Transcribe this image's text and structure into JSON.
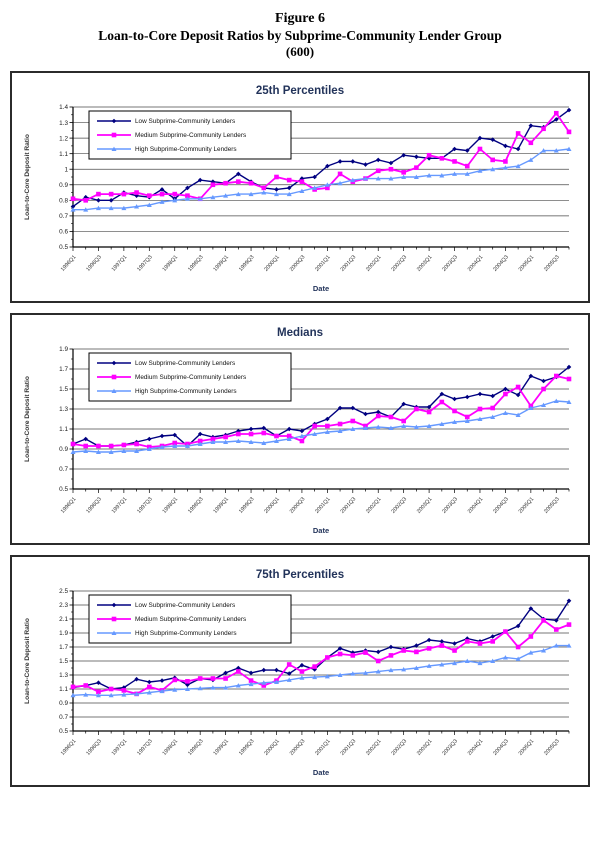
{
  "page": {
    "figure_label": "Figure 6",
    "title": "Loan-to-Core Deposit Ratios by Subprime-Community Lender Group",
    "subtitle": "(600)"
  },
  "colors": {
    "low": "#000080",
    "medium": "#FF00FF",
    "high": "#6699FF",
    "title_text": "#22335a",
    "grid": "#4a4a4a",
    "axis": "#000000"
  },
  "chart_data": [
    {
      "type": "line",
      "title": "25th Percentiles",
      "xlabel": "Date",
      "ylabel": "Loan-to-Core Deposit Ratio",
      "ylim": [
        0.5,
        1.4
      ],
      "ytick_step": 0.1,
      "grid": true,
      "legend_position": "top-left",
      "x_label_every": 2,
      "categories": [
        "1996Q1",
        "1996Q2",
        "1996Q3",
        "1996Q4",
        "1997Q1",
        "1997Q2",
        "1997Q3",
        "1997Q4",
        "1998Q1",
        "1998Q2",
        "1998Q3",
        "1998Q4",
        "1999Q1",
        "1999Q2",
        "1999Q3",
        "1999Q4",
        "2000Q1",
        "2000Q2",
        "2000Q3",
        "2000Q4",
        "2001Q1",
        "2001Q2",
        "2001Q3",
        "2001Q4",
        "2002Q1",
        "2002Q2",
        "2002Q3",
        "2002Q4",
        "2003Q1",
        "2003Q2",
        "2003Q3",
        "2003Q4",
        "2004Q1",
        "2004Q2",
        "2004Q3",
        "2004Q4",
        "2005Q1",
        "2005Q2",
        "2005Q3",
        "2005Q4"
      ],
      "series": [
        {
          "name": "Low Subprime-Community  Lenders",
          "color": "low",
          "marker": "diamond",
          "values": [
            0.76,
            0.82,
            0.8,
            0.8,
            0.85,
            0.83,
            0.82,
            0.87,
            0.81,
            0.88,
            0.93,
            0.92,
            0.91,
            0.97,
            0.92,
            0.88,
            0.87,
            0.88,
            0.94,
            0.95,
            1.02,
            1.05,
            1.05,
            1.03,
            1.06,
            1.04,
            1.09,
            1.08,
            1.07,
            1.07,
            1.13,
            1.12,
            1.2,
            1.19,
            1.15,
            1.13,
            1.28,
            1.27,
            1.32,
            1.38
          ]
        },
        {
          "name": "Medium Subprime-Community Lenders",
          "color": "medium",
          "marker": "square",
          "values": [
            0.81,
            0.8,
            0.84,
            0.84,
            0.84,
            0.85,
            0.83,
            0.84,
            0.84,
            0.83,
            0.81,
            0.9,
            0.91,
            0.92,
            0.91,
            0.88,
            0.95,
            0.93,
            0.92,
            0.87,
            0.88,
            0.97,
            0.92,
            0.94,
            0.99,
            1.0,
            0.98,
            1.01,
            1.09,
            1.07,
            1.05,
            1.02,
            1.13,
            1.06,
            1.05,
            1.23,
            1.17,
            1.26,
            1.36,
            1.24
          ]
        },
        {
          "name": "High Subprime-Community Lenders",
          "color": "high",
          "marker": "triangle",
          "values": [
            0.74,
            0.74,
            0.75,
            0.75,
            0.75,
            0.76,
            0.77,
            0.79,
            0.8,
            0.81,
            0.81,
            0.82,
            0.83,
            0.84,
            0.84,
            0.85,
            0.84,
            0.84,
            0.86,
            0.88,
            0.9,
            0.91,
            0.93,
            0.94,
            0.94,
            0.94,
            0.95,
            0.95,
            0.96,
            0.96,
            0.97,
            0.97,
            0.99,
            1.0,
            1.01,
            1.02,
            1.06,
            1.12,
            1.12,
            1.13
          ]
        }
      ]
    },
    {
      "type": "line",
      "title": "Medians",
      "xlabel": "Date",
      "ylabel": "Loan-to-Core Deposit Ratio",
      "ylim": [
        0.5,
        1.9
      ],
      "ytick_step": 0.2,
      "grid": true,
      "legend_position": "top-left",
      "x_label_every": 2,
      "categories": [
        "1996Q1",
        "1996Q2",
        "1996Q3",
        "1996Q4",
        "1997Q1",
        "1997Q2",
        "1997Q3",
        "1997Q4",
        "1998Q1",
        "1998Q2",
        "1998Q3",
        "1998Q4",
        "1999Q1",
        "1999Q2",
        "1999Q3",
        "1999Q4",
        "2000Q1",
        "2000Q2",
        "2000Q3",
        "2000Q4",
        "2001Q1",
        "2001Q2",
        "2001Q3",
        "2001Q4",
        "2002Q1",
        "2002Q2",
        "2002Q3",
        "2002Q4",
        "2003Q1",
        "2003Q2",
        "2003Q3",
        "2003Q4",
        "2004Q1",
        "2004Q2",
        "2004Q3",
        "2004Q4",
        "2005Q1",
        "2005Q2",
        "2005Q3",
        "2005Q4"
      ],
      "series": [
        {
          "name": "Low Subprime-Community Lenders",
          "color": "low",
          "marker": "diamond",
          "values": [
            0.95,
            1.0,
            0.93,
            0.93,
            0.94,
            0.97,
            1.0,
            1.03,
            1.04,
            0.93,
            1.05,
            1.02,
            1.04,
            1.08,
            1.1,
            1.11,
            1.03,
            1.1,
            1.08,
            1.15,
            1.2,
            1.31,
            1.31,
            1.25,
            1.27,
            1.22,
            1.35,
            1.32,
            1.32,
            1.45,
            1.4,
            1.42,
            1.45,
            1.43,
            1.5,
            1.44,
            1.63,
            1.58,
            1.62,
            1.72
          ]
        },
        {
          "name": "Medium Subprime-Community Lenders",
          "color": "medium",
          "marker": "square",
          "values": [
            0.95,
            0.93,
            0.93,
            0.93,
            0.94,
            0.95,
            0.92,
            0.93,
            0.96,
            0.95,
            0.98,
            1.0,
            1.02,
            1.05,
            1.05,
            1.06,
            1.03,
            1.03,
            0.98,
            1.13,
            1.13,
            1.15,
            1.18,
            1.13,
            1.23,
            1.22,
            1.18,
            1.3,
            1.27,
            1.37,
            1.28,
            1.22,
            1.3,
            1.31,
            1.45,
            1.52,
            1.33,
            1.5,
            1.63,
            1.6
          ]
        },
        {
          "name": "High Subprime-Community Lenders",
          "color": "high",
          "marker": "triangle",
          "values": [
            0.87,
            0.88,
            0.87,
            0.87,
            0.88,
            0.88,
            0.9,
            0.92,
            0.93,
            0.93,
            0.95,
            0.97,
            0.97,
            0.98,
            0.97,
            0.96,
            0.98,
            1.0,
            1.03,
            1.05,
            1.07,
            1.08,
            1.1,
            1.11,
            1.12,
            1.11,
            1.13,
            1.12,
            1.13,
            1.15,
            1.17,
            1.18,
            1.2,
            1.22,
            1.26,
            1.24,
            1.31,
            1.34,
            1.38,
            1.37
          ]
        }
      ]
    },
    {
      "type": "line",
      "title": "75th Percentiles",
      "xlabel": "Date",
      "ylabel": "Loan-to-Core Deposit Ratio",
      "ylim": [
        0.5,
        2.5
      ],
      "ytick_step": 0.2,
      "grid": true,
      "legend_position": "top-left",
      "x_label_every": 2,
      "categories": [
        "1996Q1",
        "1996Q2",
        "1996Q3",
        "1996Q4",
        "1997Q1",
        "1997Q2",
        "1997Q3",
        "1997Q4",
        "1998Q1",
        "1998Q2",
        "1998Q3",
        "1998Q4",
        "1999Q1",
        "1999Q2",
        "1999Q3",
        "1999Q4",
        "2000Q1",
        "2000Q2",
        "2000Q3",
        "2000Q4",
        "2001Q1",
        "2001Q2",
        "2001Q3",
        "2001Q4",
        "2002Q1",
        "2002Q2",
        "2002Q3",
        "2002Q4",
        "2003Q1",
        "2003Q2",
        "2003Q3",
        "2003Q4",
        "2004Q1",
        "2004Q2",
        "2004Q3",
        "2004Q4",
        "2005Q1",
        "2005Q2",
        "2005Q3",
        "2005Q4"
      ],
      "series": [
        {
          "name": "Low Subprime-Community Lenders",
          "color": "low",
          "marker": "diamond",
          "values": [
            1.12,
            1.15,
            1.19,
            1.1,
            1.12,
            1.24,
            1.2,
            1.22,
            1.26,
            1.16,
            1.25,
            1.23,
            1.33,
            1.4,
            1.33,
            1.37,
            1.37,
            1.32,
            1.44,
            1.38,
            1.55,
            1.68,
            1.62,
            1.65,
            1.63,
            1.7,
            1.67,
            1.72,
            1.8,
            1.78,
            1.75,
            1.82,
            1.78,
            1.85,
            1.92,
            2.0,
            2.25,
            2.1,
            2.08,
            2.36
          ]
        },
        {
          "name": "Medium Subprime-Community Lenders",
          "color": "medium",
          "marker": "square",
          "values": [
            1.13,
            1.15,
            1.06,
            1.1,
            1.08,
            1.03,
            1.13,
            1.08,
            1.23,
            1.21,
            1.25,
            1.25,
            1.25,
            1.35,
            1.22,
            1.15,
            1.22,
            1.45,
            1.35,
            1.42,
            1.55,
            1.6,
            1.58,
            1.62,
            1.5,
            1.58,
            1.65,
            1.63,
            1.68,
            1.72,
            1.65,
            1.78,
            1.75,
            1.78,
            1.92,
            1.7,
            1.85,
            2.08,
            1.95,
            2.02
          ]
        },
        {
          "name": "High Subprime-Community Lenders",
          "color": "high",
          "marker": "triangle",
          "values": [
            1.01,
            1.02,
            1.01,
            1.01,
            1.02,
            1.03,
            1.05,
            1.07,
            1.09,
            1.1,
            1.11,
            1.12,
            1.12,
            1.15,
            1.17,
            1.19,
            1.2,
            1.23,
            1.26,
            1.27,
            1.28,
            1.3,
            1.32,
            1.33,
            1.35,
            1.37,
            1.38,
            1.4,
            1.43,
            1.45,
            1.47,
            1.5,
            1.47,
            1.5,
            1.55,
            1.53,
            1.62,
            1.65,
            1.72,
            1.72
          ]
        }
      ]
    }
  ]
}
